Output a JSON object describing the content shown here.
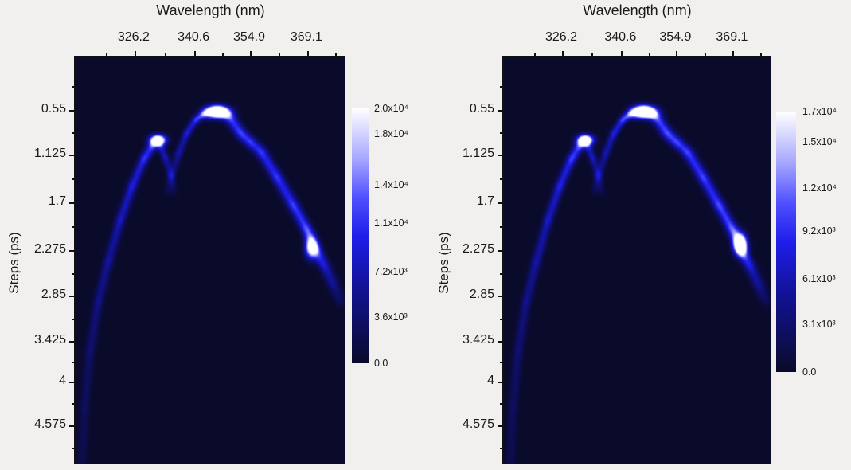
{
  "panels": [
    {
      "title": "Wavelength (nm)",
      "ylabel": "Steps (ps)",
      "x_axis": {
        "majors": [
          {
            "label": "326.2",
            "f": 0.215
          },
          {
            "label": "340.6",
            "f": 0.437
          },
          {
            "label": "354.9",
            "f": 0.643
          },
          {
            "label": "369.1",
            "f": 0.855
          }
        ],
        "minors": [
          0.109,
          0.326,
          0.54,
          0.749,
          0.959
        ]
      },
      "y_axis": {
        "majors": [
          {
            "label": "0.55",
            "f": 0.127
          },
          {
            "label": "1.125",
            "f": 0.237
          },
          {
            "label": "1.7",
            "f": 0.354
          },
          {
            "label": "2.275",
            "f": 0.472
          },
          {
            "label": "2.85",
            "f": 0.583
          },
          {
            "label": "3.425",
            "f": 0.695
          },
          {
            "label": "4",
            "f": 0.794
          },
          {
            "label": "4.575",
            "f": 0.902
          }
        ],
        "minors": [
          0.068,
          0.182,
          0.296,
          0.413,
          0.528,
          0.639,
          0.745,
          0.848,
          0.957
        ]
      },
      "colorbar": {
        "max": 20000,
        "ticks": [
          {
            "label": "2.0x10⁴",
            "value": 20000
          },
          {
            "label": "1.8x10⁴",
            "value": 18000
          },
          {
            "label": "1.4x10⁴",
            "value": 14000
          },
          {
            "label": "1.1x10⁴",
            "value": 11000
          },
          {
            "label": "7.2x10³",
            "value": 7200
          },
          {
            "label": "3.6x10³",
            "value": 3600
          },
          {
            "label": "0.0",
            "value": 0
          }
        ]
      },
      "trace": {
        "gain": 1.0,
        "blobs": [
          {
            "fx": 0.525,
            "fy": 0.133,
            "sx": 10,
            "sy": 5,
            "amp": 1.5
          },
          {
            "fx": 0.304,
            "fy": 0.202,
            "sx": 7,
            "sy": 4.5,
            "amp": 1.35
          },
          {
            "fx": 0.872,
            "fy": 0.468,
            "sx": 5.5,
            "sy": 9,
            "amp": 1.0
          }
        ]
      }
    },
    {
      "title": "Wavelength (nm)",
      "ylabel": "Steps (ps)",
      "x_axis": {
        "majors": [
          {
            "label": "326.2",
            "f": 0.215
          },
          {
            "label": "340.6",
            "f": 0.437
          },
          {
            "label": "354.9",
            "f": 0.643
          },
          {
            "label": "369.1",
            "f": 0.855
          }
        ],
        "minors": [
          0.109,
          0.326,
          0.54,
          0.749,
          0.959
        ]
      },
      "y_axis": {
        "majors": [
          {
            "label": "0.55",
            "f": 0.127
          },
          {
            "label": "1.125",
            "f": 0.237
          },
          {
            "label": "1.7",
            "f": 0.354
          },
          {
            "label": "2.275",
            "f": 0.472
          },
          {
            "label": "2.85",
            "f": 0.583
          },
          {
            "label": "3.425",
            "f": 0.695
          },
          {
            "label": "4",
            "f": 0.794
          },
          {
            "label": "4.575",
            "f": 0.902
          }
        ],
        "minors": [
          0.068,
          0.182,
          0.296,
          0.413,
          0.528,
          0.639,
          0.745,
          0.848,
          0.957
        ]
      },
      "colorbar": {
        "max": 17000,
        "ticks": [
          {
            "label": "1.7x10⁴",
            "value": 17000
          },
          {
            "label": "1.5x10⁴",
            "value": 15000
          },
          {
            "label": "1.2x10⁴",
            "value": 12000
          },
          {
            "label": "9.2x10³",
            "value": 9200
          },
          {
            "label": "6.1x10³",
            "value": 6100
          },
          {
            "label": "3.1x10³",
            "value": 3100
          },
          {
            "label": "0.0",
            "value": 0
          }
        ]
      },
      "trace": {
        "gain": 1.06,
        "blobs": [
          {
            "fx": 0.525,
            "fy": 0.133,
            "sx": 10,
            "sy": 5,
            "amp": 1.55
          },
          {
            "fx": 0.304,
            "fy": 0.202,
            "sx": 7,
            "sy": 4.5,
            "amp": 1.35
          },
          {
            "fx": 0.886,
            "fy": 0.458,
            "sx": 5.5,
            "sy": 9,
            "amp": 1.5
          }
        ]
      }
    }
  ],
  "heatmap_style": {
    "background_rgb": [
      10,
      10,
      42
    ],
    "colormap": [
      [
        0.0,
        [
          10,
          10,
          42
        ]
      ],
      [
        0.3,
        [
          18,
          18,
          150
        ]
      ],
      [
        0.5,
        [
          30,
          30,
          235
        ]
      ],
      [
        0.65,
        [
          80,
          80,
          255
        ]
      ],
      [
        0.8,
        [
          165,
          165,
          255
        ]
      ],
      [
        1.0,
        [
          255,
          255,
          255
        ]
      ]
    ],
    "strokes": [
      {
        "w": 11,
        "pts": [
          [
            0.022,
            1.0,
            0.1
          ],
          [
            0.032,
            0.86,
            0.13
          ],
          [
            0.052,
            0.72,
            0.17
          ],
          [
            0.082,
            0.6,
            0.22
          ],
          [
            0.12,
            0.5,
            0.28
          ],
          [
            0.163,
            0.4,
            0.34
          ],
          [
            0.208,
            0.315,
            0.4
          ],
          [
            0.252,
            0.248,
            0.46
          ],
          [
            0.285,
            0.214,
            0.5
          ],
          [
            0.304,
            0.202,
            0.52
          ]
        ]
      },
      {
        "w": 9,
        "pts": [
          [
            0.308,
            0.208,
            0.42
          ],
          [
            0.332,
            0.247,
            0.3
          ],
          [
            0.352,
            0.29,
            0.2
          ],
          [
            0.366,
            0.335,
            0.08
          ]
        ]
      },
      {
        "w": 9,
        "pts": [
          [
            0.337,
            0.335,
            0.08
          ],
          [
            0.355,
            0.288,
            0.18
          ],
          [
            0.38,
            0.235,
            0.28
          ],
          [
            0.41,
            0.186,
            0.36
          ],
          [
            0.444,
            0.152,
            0.44
          ],
          [
            0.478,
            0.136,
            0.5
          ]
        ]
      },
      {
        "w": 13,
        "pts": [
          [
            0.478,
            0.136,
            0.52
          ],
          [
            0.525,
            0.13,
            0.56
          ],
          [
            0.565,
            0.142,
            0.55
          ],
          [
            0.611,
            0.186,
            0.5
          ],
          [
            0.648,
            0.208,
            0.48
          ],
          [
            0.687,
            0.231,
            0.48
          ],
          [
            0.746,
            0.295,
            0.48
          ],
          [
            0.805,
            0.362,
            0.5
          ],
          [
            0.855,
            0.421,
            0.55
          ],
          [
            0.886,
            0.468,
            0.55
          ],
          [
            0.92,
            0.51,
            0.38
          ],
          [
            0.952,
            0.555,
            0.25
          ],
          [
            0.985,
            0.605,
            0.12
          ]
        ]
      }
    ]
  },
  "chart_data": [
    {
      "type": "heatmap",
      "panel": "left",
      "xlabel": "Wavelength (nm)",
      "ylabel": "Steps (ps)",
      "x_ticks": [
        326.2,
        340.6,
        354.9,
        369.1
      ],
      "y_ticks": [
        0.55,
        1.125,
        1.7,
        2.275,
        2.85,
        3.425,
        4,
        4.575
      ],
      "x_range_nm": [
        311.5,
        379.0
      ],
      "y_range_ps": [
        -0.1,
        5.1
      ],
      "intensity_max": 20000,
      "colorbar_tick_labels": [
        "2.0x10⁴",
        "1.8x10⁴",
        "1.4x10⁴",
        "1.1x10⁴",
        "7.2x10³",
        "3.6x10³",
        "0.0"
      ],
      "colorbar_tick_values": [
        20000,
        18000,
        14000,
        11000,
        7200,
        3600,
        0
      ],
      "colormap": "dark-navy to blue to white",
      "features": [
        {
          "name": "main-peak",
          "wavelength_nm": 347,
          "steps_ps": 0.58,
          "intensity": "saturated (white)"
        },
        {
          "name": "secondary-peak",
          "wavelength_nm": 332,
          "steps_ps": 0.94,
          "intensity": "saturated (white)"
        },
        {
          "name": "descending-branch-hotspot",
          "wavelength_nm": 370.5,
          "steps_ps": 2.3,
          "intensity": "bright"
        },
        {
          "name": "left-arc",
          "description": "faint blue arc rising from bottom-left corner to the secondary peak"
        },
        {
          "name": "right-arc",
          "description": "blue arc from main peak descending toward lower-right edge, fading near 2.9 ps"
        },
        {
          "name": "crossing",
          "description": "two arcs cross in a narrow dark notch between the two peaks"
        }
      ]
    },
    {
      "type": "heatmap",
      "panel": "right",
      "xlabel": "Wavelength (nm)",
      "ylabel": "Steps (ps)",
      "x_ticks": [
        326.2,
        340.6,
        354.9,
        369.1
      ],
      "y_ticks": [
        0.55,
        1.125,
        1.7,
        2.275,
        2.85,
        3.425,
        4,
        4.575
      ],
      "x_range_nm": [
        311.5,
        379.0
      ],
      "y_range_ps": [
        -0.1,
        5.1
      ],
      "intensity_max": 17000,
      "colorbar_tick_labels": [
        "1.7x10⁴",
        "1.5x10⁴",
        "1.2x10⁴",
        "9.2x10³",
        "6.1x10³",
        "3.1x10³",
        "0.0"
      ],
      "colorbar_tick_values": [
        17000,
        15000,
        12000,
        9200,
        6100,
        3100,
        0
      ],
      "colormap": "dark-navy to blue to white",
      "features": [
        {
          "name": "main-peak",
          "wavelength_nm": 347,
          "steps_ps": 0.58,
          "intensity": "saturated (white)"
        },
        {
          "name": "secondary-peak",
          "wavelength_nm": 332,
          "steps_ps": 0.94,
          "intensity": "saturated (white)"
        },
        {
          "name": "descending-branch-hotspot",
          "wavelength_nm": 371,
          "steps_ps": 2.25,
          "intensity": "saturated (white)"
        },
        {
          "name": "left-arc",
          "description": "faint blue arc rising from bottom-left corner to the secondary peak"
        },
        {
          "name": "right-arc",
          "description": "blue arc from main peak descending toward lower-right edge, fading near 2.9 ps"
        },
        {
          "name": "crossing",
          "description": "two arcs cross in a narrow dark notch between the two peaks"
        }
      ]
    }
  ]
}
